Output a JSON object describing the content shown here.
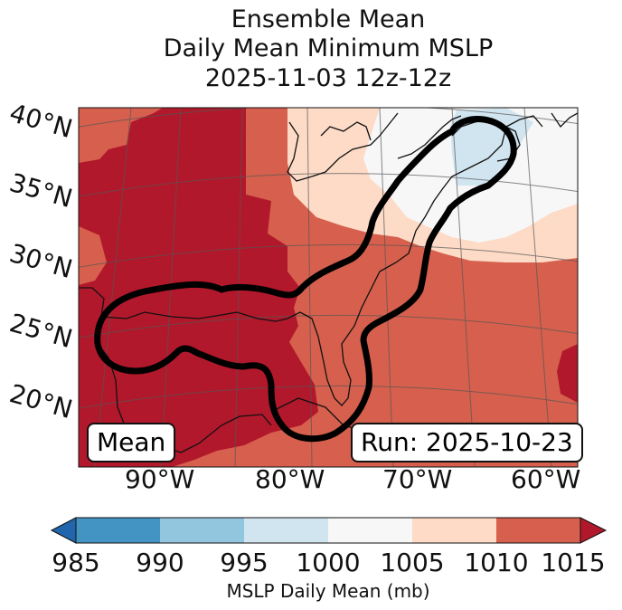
{
  "title": {
    "line1": "Ensemble Mean",
    "line2": "Daily Mean Minimum MSLP",
    "line3": "2025-11-03 12z-12z"
  },
  "lat_labels": [
    "40°N",
    "35°N",
    "30°N",
    "25°N",
    "20°N"
  ],
  "lon_labels": [
    "90°W",
    "80°W",
    "70°W",
    "60°W"
  ],
  "mean_label": "Mean",
  "run_label": "Run: 2025-10-23",
  "colorbar": {
    "ticks": [
      "985",
      "990",
      "995",
      "1000",
      "1005",
      "1010",
      "1015"
    ],
    "label": "MSLP Daily Mean (mb)",
    "colors": [
      "#2166ac",
      "#4393c3",
      "#92c5de",
      "#d1e5f0",
      "#f7f7f7",
      "#fddbc7",
      "#d6604d",
      "#b2182b"
    ]
  },
  "field_colors": {
    "lt_1000": "#d1e5f0",
    "1000_1005": "#f7f7f7",
    "1005_1010": "#fddbc7",
    "1010_1015": "#d6604d",
    "gt_1015": "#b2182b"
  }
}
